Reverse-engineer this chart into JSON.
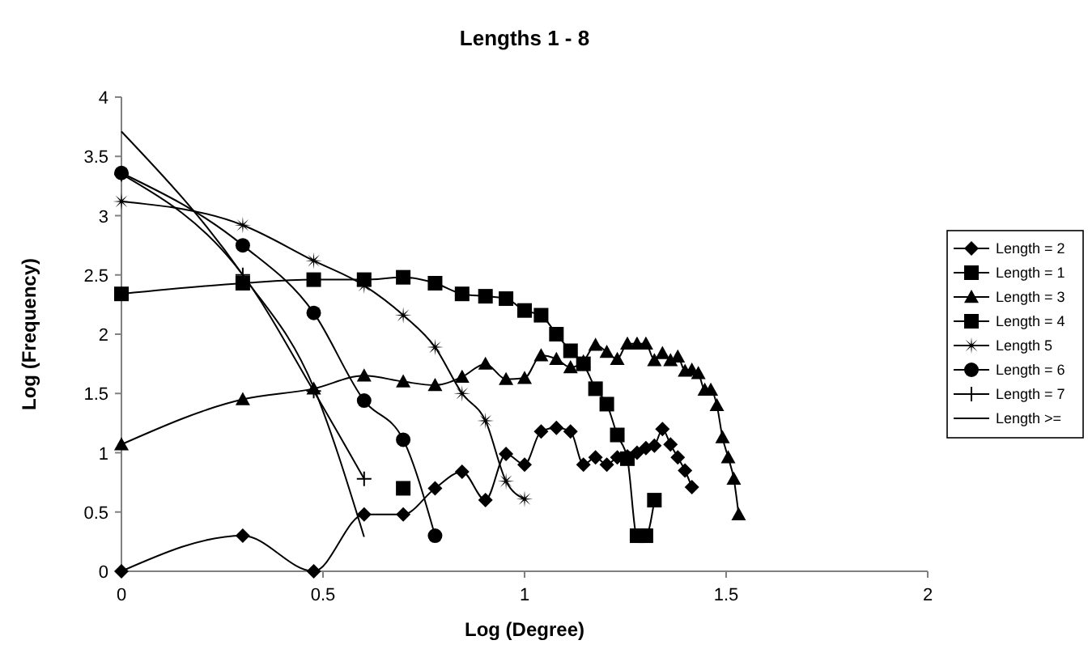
{
  "chart_data": {
    "type": "line",
    "title": "Lengths 1 - 8",
    "xlabel": "Log (Degree)",
    "ylabel": "Log (Frequency)",
    "xlim": [
      0,
      2
    ],
    "xticks": [
      0,
      0.5,
      1,
      1.5,
      2
    ],
    "ylim": [
      0,
      4
    ],
    "yticks": [
      0,
      0.5,
      1,
      1.5,
      2,
      2.5,
      3,
      3.5,
      4
    ],
    "grid": false,
    "legend": "right",
    "line_style": "solid",
    "series": [
      {
        "name": "Length = 2",
        "color": "#000000",
        "marker": "diamond",
        "x": [
          0,
          0.301,
          0.477,
          0.602,
          0.699,
          0.778,
          0.845,
          0.903,
          0.954,
          1,
          1.041,
          1.079,
          1.114,
          1.146,
          1.176,
          1.204,
          1.23,
          1.255,
          1.279,
          1.301,
          1.322,
          1.342,
          1.362,
          1.38,
          1.398,
          1.415
        ],
        "values": [
          0,
          0.3,
          0,
          0.48,
          0.48,
          0.7,
          0.84,
          0.6,
          0.99,
          0.9,
          1.18,
          1.21,
          1.18,
          0.9,
          0.96,
          0.9,
          0.96,
          0.97,
          1,
          1.04,
          1.06,
          1.2,
          1.07,
          0.96,
          0.85,
          0.71
        ]
      },
      {
        "name": "Length = 1",
        "color": "#000000",
        "marker": "square",
        "x": [
          0.699
        ],
        "values": [
          0.7
        ]
      },
      {
        "name": "Length = 3",
        "color": "#000000",
        "marker": "triangle",
        "x": [
          0,
          0.301,
          0.477,
          0.602,
          0.699,
          0.778,
          0.845,
          0.903,
          0.954,
          1,
          1.041,
          1.079,
          1.114,
          1.146,
          1.176,
          1.204,
          1.23,
          1.255,
          1.279,
          1.301,
          1.322,
          1.342,
          1.362,
          1.38,
          1.398,
          1.415,
          1.431,
          1.447,
          1.462,
          1.477,
          1.491,
          1.505,
          1.519,
          1.531
        ],
        "values": [
          1.07,
          1.45,
          1.54,
          1.65,
          1.6,
          1.57,
          1.64,
          1.75,
          1.62,
          1.63,
          1.82,
          1.79,
          1.72,
          1.77,
          1.91,
          1.85,
          1.79,
          1.92,
          1.92,
          1.92,
          1.78,
          1.84,
          1.78,
          1.81,
          1.69,
          1.7,
          1.67,
          1.53,
          1.53,
          1.4,
          1.13,
          0.96,
          0.78,
          0.48
        ]
      },
      {
        "name": "Length = 4",
        "color": "#000000",
        "marker": "square",
        "x": [
          0,
          0.301,
          0.477,
          0.602,
          0.699,
          0.778,
          0.845,
          0.903,
          0.954,
          1,
          1.041,
          1.079,
          1.114,
          1.146,
          1.176,
          1.204,
          1.23,
          1.255,
          1.279,
          1.301,
          1.322
        ],
        "values": [
          2.34,
          2.43,
          2.46,
          2.46,
          2.48,
          2.43,
          2.34,
          2.32,
          2.3,
          2.2,
          2.16,
          2,
          1.86,
          1.75,
          1.54,
          1.41,
          1.15,
          0.95,
          0.3,
          0.3,
          0.6
        ]
      },
      {
        "name": "Length 5",
        "color": "#000000",
        "marker": "star",
        "x": [
          0,
          0.301,
          0.477,
          0.602,
          0.699,
          0.778,
          0.845,
          0.903,
          0.954,
          1
        ],
        "values": [
          3.12,
          2.92,
          2.62,
          2.41,
          2.16,
          1.89,
          1.5,
          1.27,
          0.76,
          0.61
        ]
      },
      {
        "name": "Length = 6",
        "color": "#000000",
        "marker": "circle",
        "x": [
          0,
          0.301,
          0.477,
          0.602,
          0.699,
          0.778
        ],
        "values": [
          3.36,
          2.75,
          2.18,
          1.44,
          1.11,
          0.3
        ]
      },
      {
        "name": "Length = 7",
        "color": "#000000",
        "marker": "cross",
        "x": [
          0,
          0.301,
          0.477,
          0.602
        ],
        "values": [
          3.35,
          2.5,
          1.52,
          0.78
        ]
      },
      {
        "name": "Length >=",
        "color": "#000000",
        "marker": "none",
        "x": [
          0,
          0.301,
          0.477,
          0.602
        ],
        "values": [
          3.71,
          2.5,
          1.55,
          0.29
        ]
      }
    ]
  }
}
